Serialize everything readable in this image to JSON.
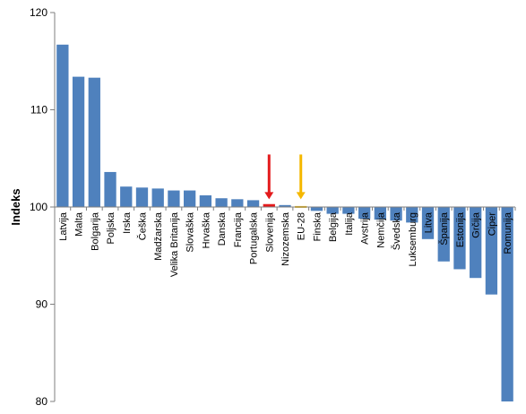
{
  "chart_data": {
    "type": "bar",
    "title": "",
    "xlabel": "",
    "ylabel": "Indeks",
    "ylim": [
      80,
      120
    ],
    "yticks": [
      80,
      90,
      100,
      110,
      120
    ],
    "baseline": 100,
    "grid": false,
    "legend": "none",
    "colors": {
      "bar": "#4f81bd",
      "highlight_bar": "#e31a1c",
      "eu_bar": "#f5b800",
      "arrow_slovenia": "#e31a1c",
      "arrow_eu": "#f5b800",
      "axis": "#7f7f7f"
    },
    "categories": [
      "Latvija",
      "Malta",
      "Bolgarija",
      "Poljska",
      "Irska",
      "Češka",
      "Madžarska",
      "Velika Britanija",
      "Slovaška",
      "Hrvaška",
      "Danska",
      "Francija",
      "Portugalska",
      "Slovenija",
      "Nizozemska",
      "EU-28",
      "Finska",
      "Belgija",
      "Italija",
      "Avstrija",
      "Nemčija",
      "Švedska",
      "Luksemburg",
      "Litva",
      "Španija",
      "Estonija",
      "Grčija",
      "Ciper",
      "Romunija"
    ],
    "values": [
      116.7,
      113.4,
      113.3,
      103.6,
      102.1,
      102.0,
      101.9,
      101.7,
      101.7,
      101.2,
      100.9,
      100.8,
      100.7,
      100.3,
      100.2,
      100.1,
      99.6,
      99.3,
      99.3,
      98.8,
      98.7,
      98.6,
      98.4,
      96.7,
      94.4,
      93.6,
      92.7,
      91.0,
      80.0
    ],
    "highlight": [
      "Slovenija"
    ],
    "eu_category": "EU-28",
    "arrows": [
      "Slovenija",
      "EU-28"
    ]
  }
}
